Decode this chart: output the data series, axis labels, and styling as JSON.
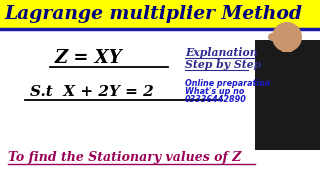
{
  "title": "Lagrange multiplier Method",
  "title_bg": "#FFFF00",
  "title_color": "#000080",
  "title_border_color": "#1a1aaa",
  "body_bg": "#FFFFFF",
  "formula1": "Z = XY",
  "formula2": "S.t  X + 2Y = 2",
  "formula_color": "#000000",
  "explanation_line1": "Explanation",
  "explanation_line2": "Step by Step",
  "explanation_color": "#2d2d8f",
  "online_line1": "Online preparation",
  "online_line2": "What's up no",
  "online_line3": "03336442890",
  "online_color": "#1a1acc",
  "bottom_text": "To find the Stationary values of Z",
  "bottom_color": "#990055",
  "underline_color": "#000000",
  "person_skin": "#c8956c",
  "person_body": "#1a1a1a"
}
